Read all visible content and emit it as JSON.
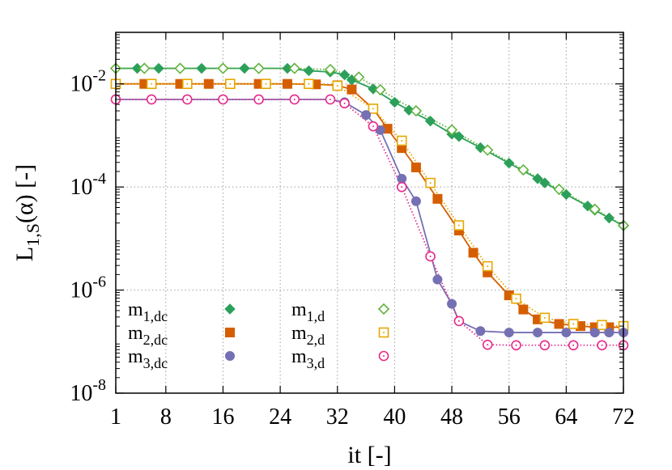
{
  "chart_data": {
    "type": "line",
    "title": "",
    "xlabel": "it [-]",
    "ylabel": {
      "base": "L",
      "sub": "1,S",
      "rest": "(α) [-]"
    },
    "xlim": [
      1,
      72
    ],
    "ylim": [
      1e-08,
      0.1
    ],
    "yscale": "log",
    "grid": true,
    "legend_position": "bottom-left",
    "x_ticks": [
      1,
      8,
      16,
      24,
      32,
      40,
      48,
      56,
      64,
      72
    ],
    "x_tick_labels": [
      "1",
      "8",
      "16",
      "24",
      "32",
      "40",
      "48",
      "56",
      "64",
      "72"
    ],
    "y_ticks": [
      1e-08,
      1e-06,
      0.0001,
      0.01
    ],
    "y_tick_labels": [
      {
        "base": "10",
        "exp": "-8"
      },
      {
        "base": "10",
        "exp": "-6"
      },
      {
        "base": "10",
        "exp": "-4"
      },
      {
        "base": "10",
        "exp": "-2"
      }
    ],
    "series": [
      {
        "name": "m1,dc",
        "label_base": "m",
        "label_sub": "1,dc",
        "color": "#2ca05a",
        "marker": "diamond",
        "filled": true,
        "line": "solid",
        "x": [
          1,
          4,
          7,
          10,
          13,
          16,
          19,
          21,
          25,
          28,
          31,
          33,
          34,
          37,
          40,
          42,
          45,
          48,
          49,
          52,
          56,
          60,
          61,
          64,
          67,
          68,
          70,
          72
        ],
        "y": [
          0.02,
          0.02,
          0.02,
          0.02,
          0.02,
          0.02,
          0.02,
          0.02,
          0.02,
          0.018,
          0.017,
          0.015,
          0.012,
          0.008,
          0.0044,
          0.0031,
          0.0019,
          0.00106,
          0.00095,
          0.00058,
          0.00029,
          0.000145,
          0.00012,
          7.15e-05,
          4.27e-05,
          3.54e-05,
          2.5e-05,
          1.76e-05
        ]
      },
      {
        "name": "m1,d",
        "label_base": "m",
        "label_sub": "1,d",
        "color": "#5fb33c",
        "marker": "diamond",
        "filled": false,
        "line": "dotted",
        "x": [
          1,
          5,
          10,
          16,
          21,
          26,
          31,
          35,
          38,
          43,
          48,
          53,
          58,
          63,
          68,
          72
        ],
        "y": [
          0.02,
          0.02,
          0.02,
          0.02,
          0.02,
          0.02,
          0.019,
          0.0135,
          0.0077,
          0.003,
          0.00128,
          0.00052,
          0.000215,
          9e-05,
          3.7e-05,
          1.8e-05
        ]
      },
      {
        "name": "m2,dc",
        "label_base": "m",
        "label_sub": "2,dc",
        "color": "#d55e00",
        "marker": "square",
        "filled": true,
        "line": "solid",
        "x": [
          1,
          5,
          10,
          14,
          17,
          21,
          25,
          29,
          32,
          34,
          37,
          39,
          41,
          43,
          46,
          49,
          51,
          53,
          56,
          58,
          60,
          63,
          66,
          68,
          70,
          72
        ],
        "y": [
          0.01,
          0.01,
          0.01,
          0.01,
          0.01,
          0.01,
          0.01,
          0.0098,
          0.0094,
          0.0078,
          0.0033,
          0.00135,
          0.00057,
          0.00024,
          5.88e-05,
          1.43e-05,
          5.3e-06,
          2.2e-06,
          7.9e-07,
          4.2e-07,
          2.7e-07,
          2.2e-07,
          2e-07,
          1.9e-07,
          1.9e-07,
          1.9e-07
        ]
      },
      {
        "name": "m2,d",
        "label_base": "m",
        "label_sub": "2,d",
        "color": "#e6a800",
        "marker": "square",
        "filled": false,
        "line": "dotted",
        "x": [
          1,
          6,
          11,
          17,
          22,
          28,
          32,
          37,
          41,
          45,
          49,
          53,
          57,
          61,
          65,
          69,
          72
        ],
        "y": [
          0.01,
          0.01,
          0.01,
          0.01,
          0.01,
          0.01,
          0.0092,
          0.0033,
          0.00079,
          0.00012,
          1.8e-05,
          2.9e-06,
          6.8e-07,
          2.9e-07,
          2.2e-07,
          2.1e-07,
          2e-07
        ]
      },
      {
        "name": "m3,dc",
        "label_base": "m",
        "label_sub": "3,dc",
        "color": "#7570b3",
        "marker": "circle",
        "filled": true,
        "line": "solid",
        "x": [
          1,
          6,
          11,
          16,
          21,
          26,
          31,
          33,
          36,
          38,
          41,
          43,
          46,
          48,
          49,
          52,
          56,
          60,
          64,
          68,
          70,
          72
        ],
        "y": [
          0.005,
          0.005,
          0.005,
          0.005,
          0.005,
          0.005,
          0.005,
          0.0044,
          0.0025,
          0.00127,
          0.000145,
          5.3e-05,
          1.6e-06,
          5.4e-07,
          2.5e-07,
          1.6e-07,
          1.5e-07,
          1.5e-07,
          1.5e-07,
          1.5e-07,
          1.5e-07,
          1.5e-07
        ]
      },
      {
        "name": "m3,d",
        "label_base": "m",
        "label_sub": "3,d",
        "color": "#e7298a",
        "marker": "circle",
        "filled": false,
        "line": "dotted",
        "x": [
          1,
          6,
          11,
          16,
          21,
          26,
          31,
          33,
          37,
          41,
          45,
          49,
          53,
          57,
          61,
          65,
          69,
          72
        ],
        "y": [
          0.005,
          0.005,
          0.005,
          0.005,
          0.005,
          0.005,
          0.005,
          0.0042,
          0.0015,
          0.0001,
          4.5e-06,
          2.5e-07,
          8.7e-08,
          8.5e-08,
          8.5e-08,
          8.5e-08,
          8.5e-08,
          8.5e-08
        ]
      }
    ]
  }
}
